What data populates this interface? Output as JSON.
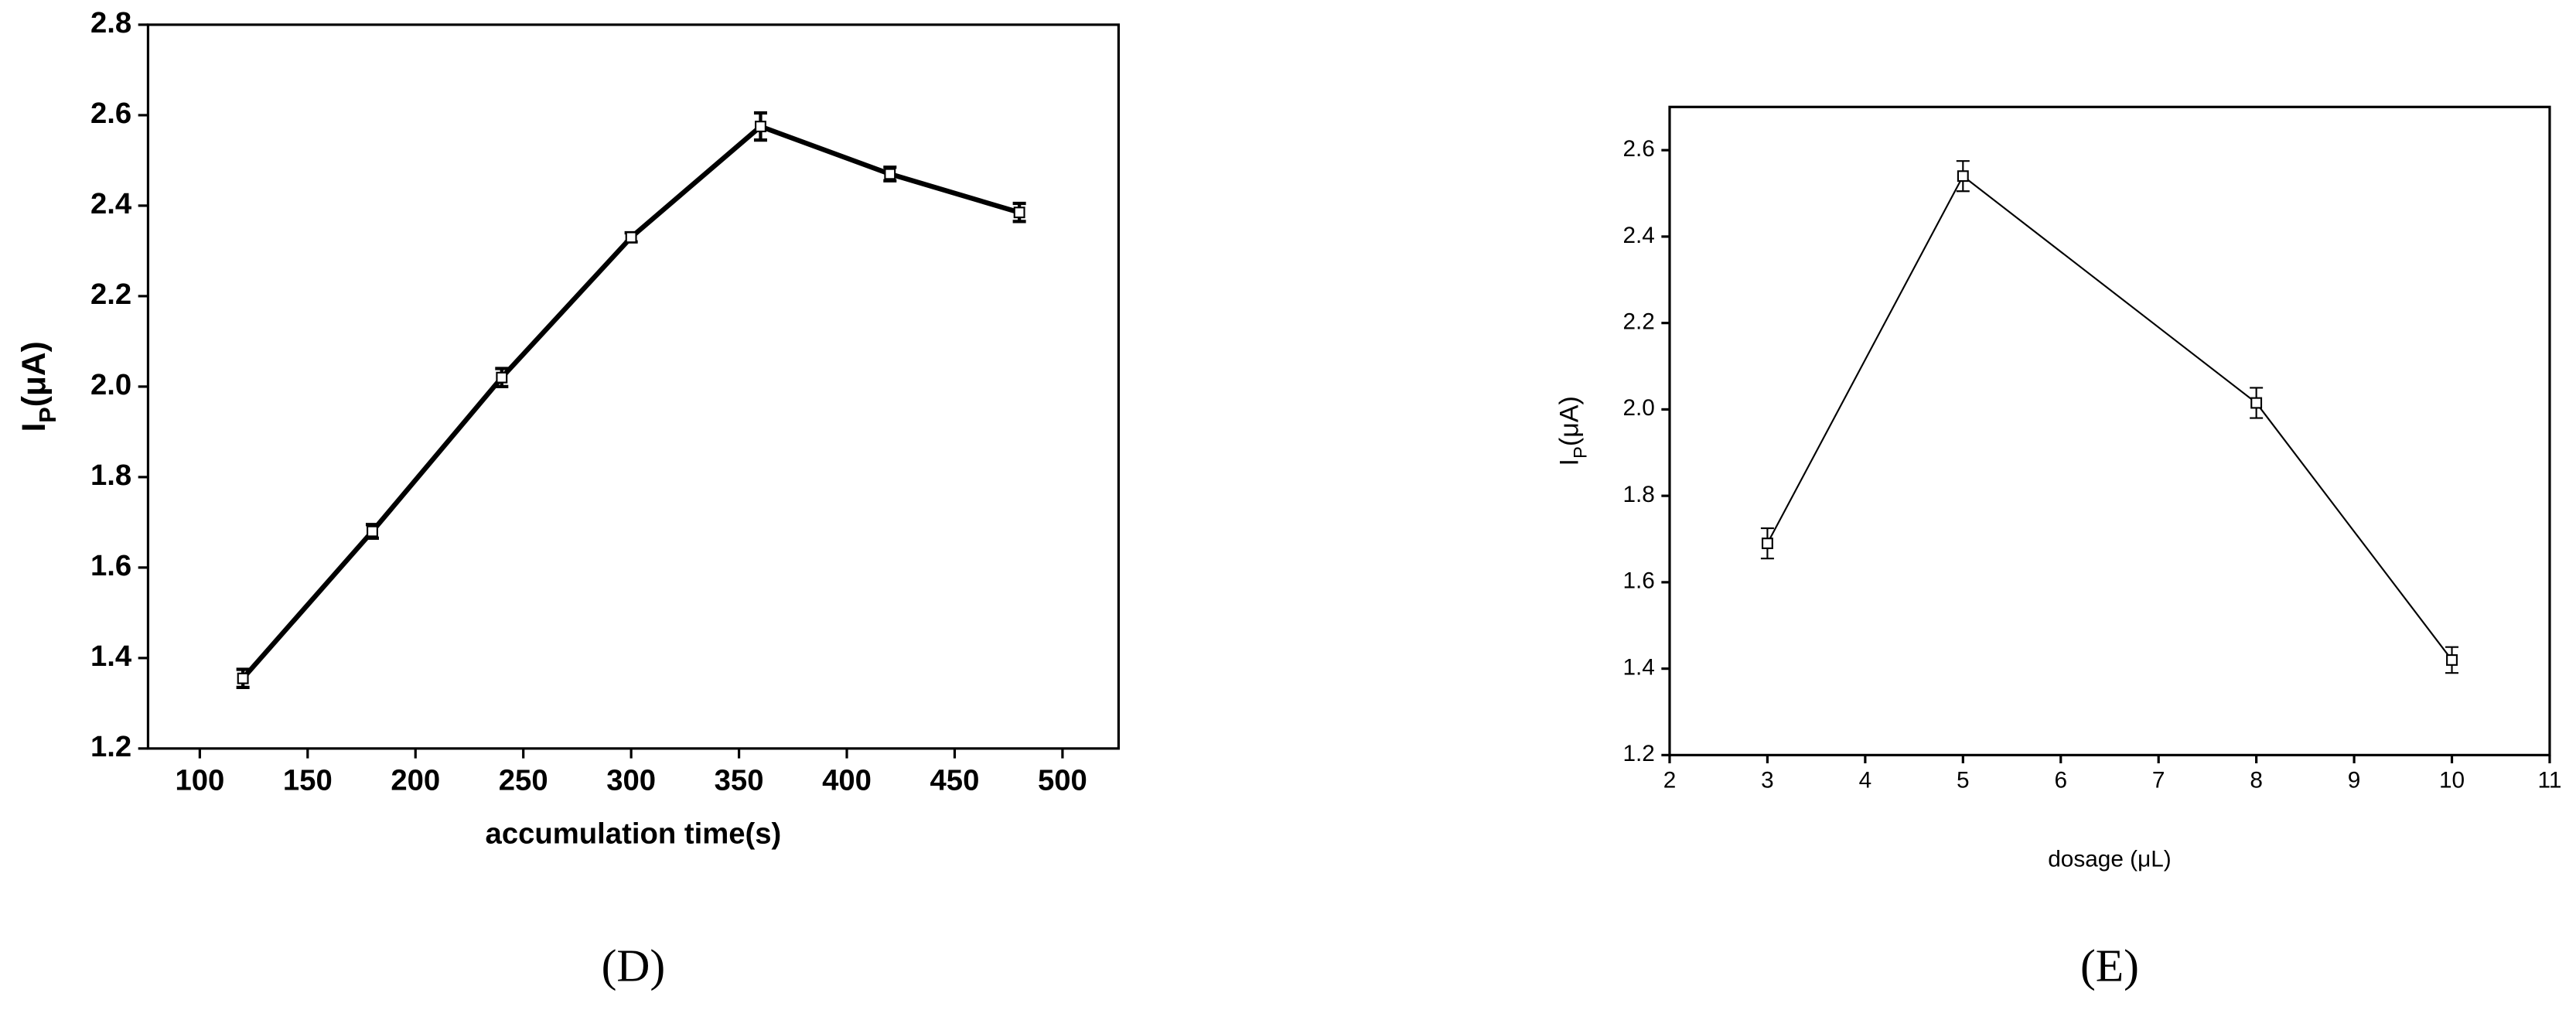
{
  "chart_data": [
    {
      "type": "line",
      "caption": "(D)",
      "xlabel": "accumulation time(s)",
      "ylabel": [
        "I",
        "P",
        "(μA)"
      ],
      "x": [
        120,
        180,
        240,
        300,
        360,
        420,
        480
      ],
      "series": [
        {
          "color": "#000000",
          "values": [
            1.355,
            1.68,
            2.02,
            2.33,
            2.575,
            2.47,
            2.385
          ],
          "errors": [
            0.02,
            0.015,
            0.02,
            0.01,
            0.03,
            0.015,
            0.02
          ]
        }
      ],
      "xlim": [
        76,
        526
      ],
      "xticks": [
        100,
        150,
        200,
        250,
        300,
        350,
        400,
        450,
        500
      ],
      "ylim": [
        1.2,
        2.8
      ],
      "yticks": [
        1.2,
        1.4,
        1.6,
        1.8,
        {
          "value": 2,
          "label": "2.0"
        },
        2.2,
        2.4,
        2.6,
        2.8
      ]
    },
    {
      "type": "line",
      "caption": "(E)",
      "xlabel": "dosage (μL)",
      "ylabel": [
        "I",
        "P",
        "(μA)"
      ],
      "x": [
        3,
        5,
        8,
        10
      ],
      "series": [
        {
          "color": "#000000",
          "values": [
            1.69,
            2.54,
            2.015,
            1.42
          ],
          "errors": [
            0.035,
            0.035,
            0.035,
            0.03
          ]
        }
      ],
      "xlim": [
        2,
        11
      ],
      "xticks": [
        2,
        3,
        4,
        5,
        6,
        7,
        8,
        9,
        10,
        11
      ],
      "ylim": [
        1.2,
        2.7
      ],
      "yticks": [
        1.2,
        1.4,
        1.6,
        1.8,
        {
          "value": 2,
          "label": "2.0"
        },
        2.2,
        2.4,
        2.6
      ]
    }
  ]
}
